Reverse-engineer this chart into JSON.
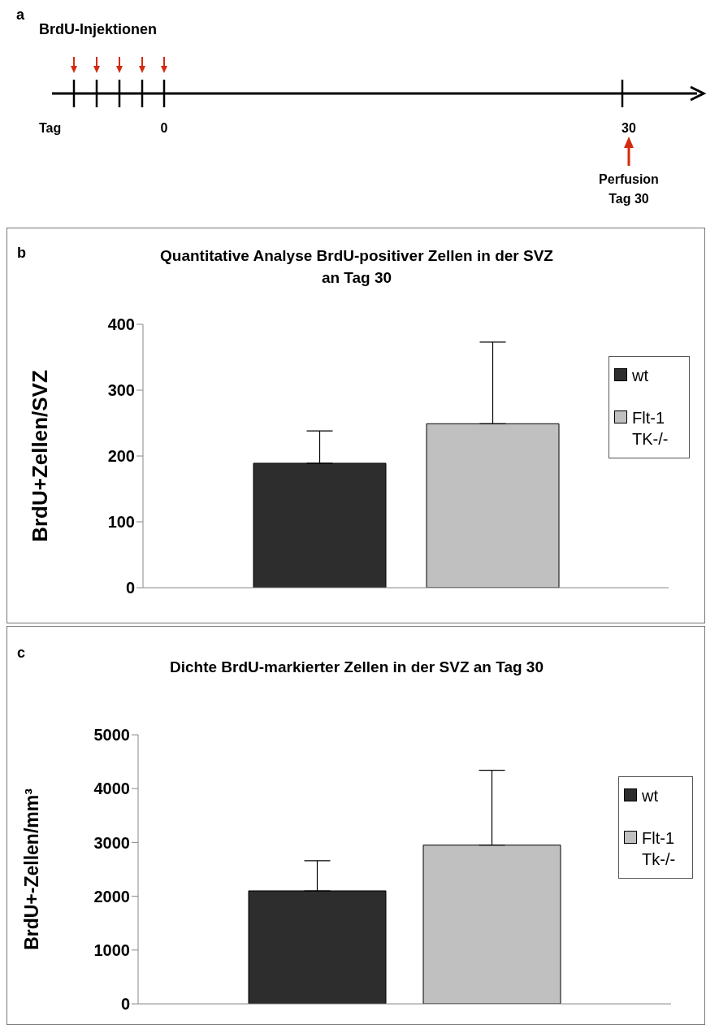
{
  "chart_data": [
    {
      "type": "other",
      "annotations": [
        "a",
        "BrdU-Injektionen",
        "Tag",
        "0",
        "30",
        "Perfusion",
        "Tag 30"
      ]
    },
    {
      "type": "bar",
      "title": "Quantitative Analyse BrdU-positiver Zellen in der SVZ\nan Tag 30",
      "ylabel": "BrdU+Zellen/SVZ",
      "annotations": [
        "b"
      ],
      "categories": [
        null
      ],
      "series": [
        {
          "name": "wt",
          "color": "#2d2d2d",
          "values": [
            189
          ],
          "errors": [
            [
              189,
              238
            ]
          ]
        },
        {
          "name": "Flt-1 TK-/-",
          "color": "#c0c0c0",
          "values": [
            249
          ],
          "errors": [
            [
              249,
              373
            ]
          ]
        }
      ],
      "ylim": [
        0,
        400
      ],
      "yticks": [
        0,
        100,
        200,
        300,
        400
      ],
      "legend": "right",
      "tick_labels": "y",
      "grid": false
    },
    {
      "type": "bar",
      "title": "Dichte BrdU-markierter Zellen in der SVZ an Tag 30",
      "ylabel": "BrdU+-Zellen/mm³",
      "annotations": [
        "c"
      ],
      "categories": [
        null
      ],
      "series": [
        {
          "name": "wt",
          "color": "#2d2d2d",
          "values": [
            2100
          ],
          "errors": [
            [
              2100,
              2660
            ]
          ]
        },
        {
          "name": "Flt-1 Tk-/-",
          "color": "#c0c0c0",
          "values": [
            2950
          ],
          "errors": [
            [
              2950,
              4340
            ]
          ]
        }
      ],
      "ylim": [
        0,
        5000
      ],
      "yticks": [
        0,
        1000,
        2000,
        3000,
        4000,
        5000
      ],
      "legend": "right",
      "tick_labels": "y",
      "grid": false
    }
  ]
}
